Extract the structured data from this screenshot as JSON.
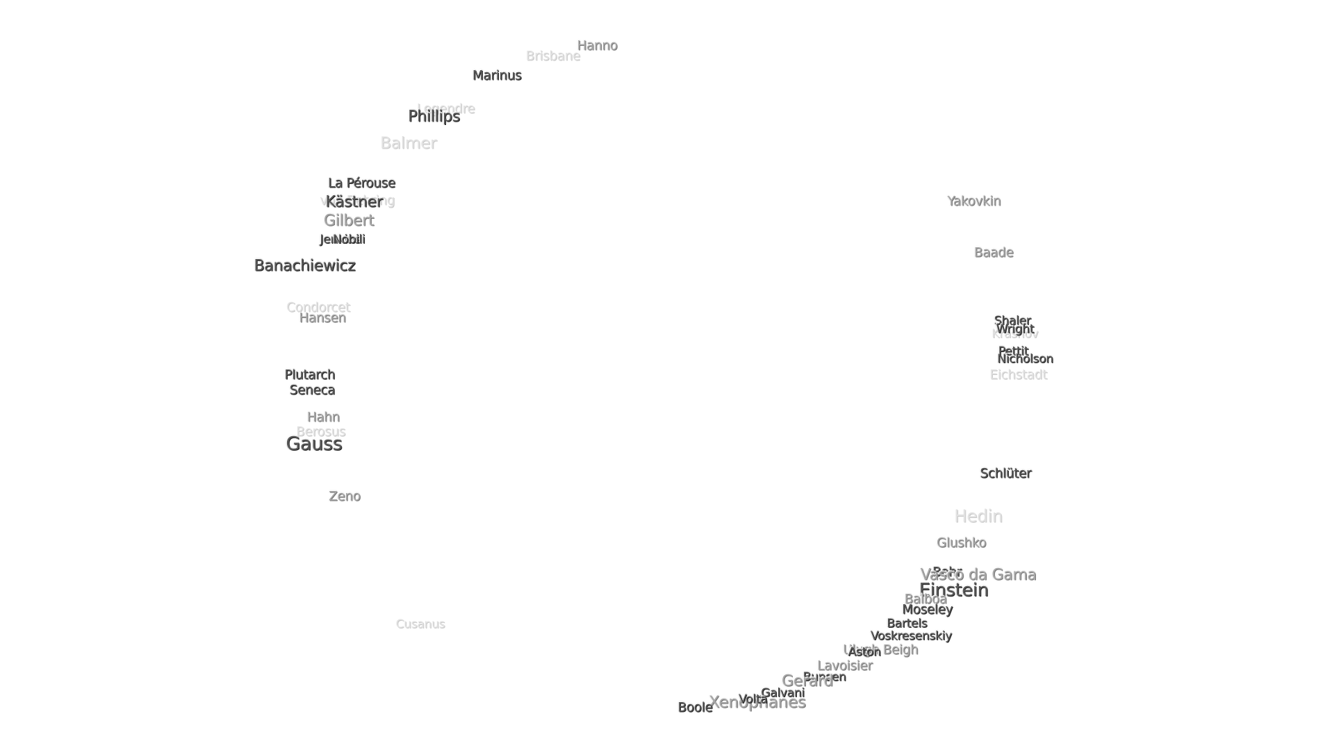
{
  "labels": [
    "Hanno",
    "Brisbane",
    "Marinus",
    "Legendre",
    "Phillips",
    "Balmer",
    "La Pérouse",
    "von Behring",
    "Kästner",
    "Gilbert",
    "Jenkins",
    "Nobili",
    "Banachiewicz",
    "Condorcet",
    "Hansen",
    "Plutarch",
    "Seneca",
    "Hahn",
    "Berosus",
    "Gauss",
    "Zeno",
    "Cusanus",
    "Yakovkin",
    "Baade",
    "Shaler",
    "Krasnov",
    "Wright",
    "Pettit",
    "Nicholson",
    "Eichstadt",
    "Schlüter",
    "Hedin",
    "Glushko",
    "Bohr",
    "Vasco da Gama",
    "Einstein",
    "Balboa",
    "Moseley",
    "Bartels",
    "Voskresenskiy",
    "Ulugh Beigh",
    "Aston",
    "Lavoisier",
    "Bunsen",
    "Gerard",
    "Xenophanes",
    "Galvani",
    "Volta",
    "Boole"
  ]
}
